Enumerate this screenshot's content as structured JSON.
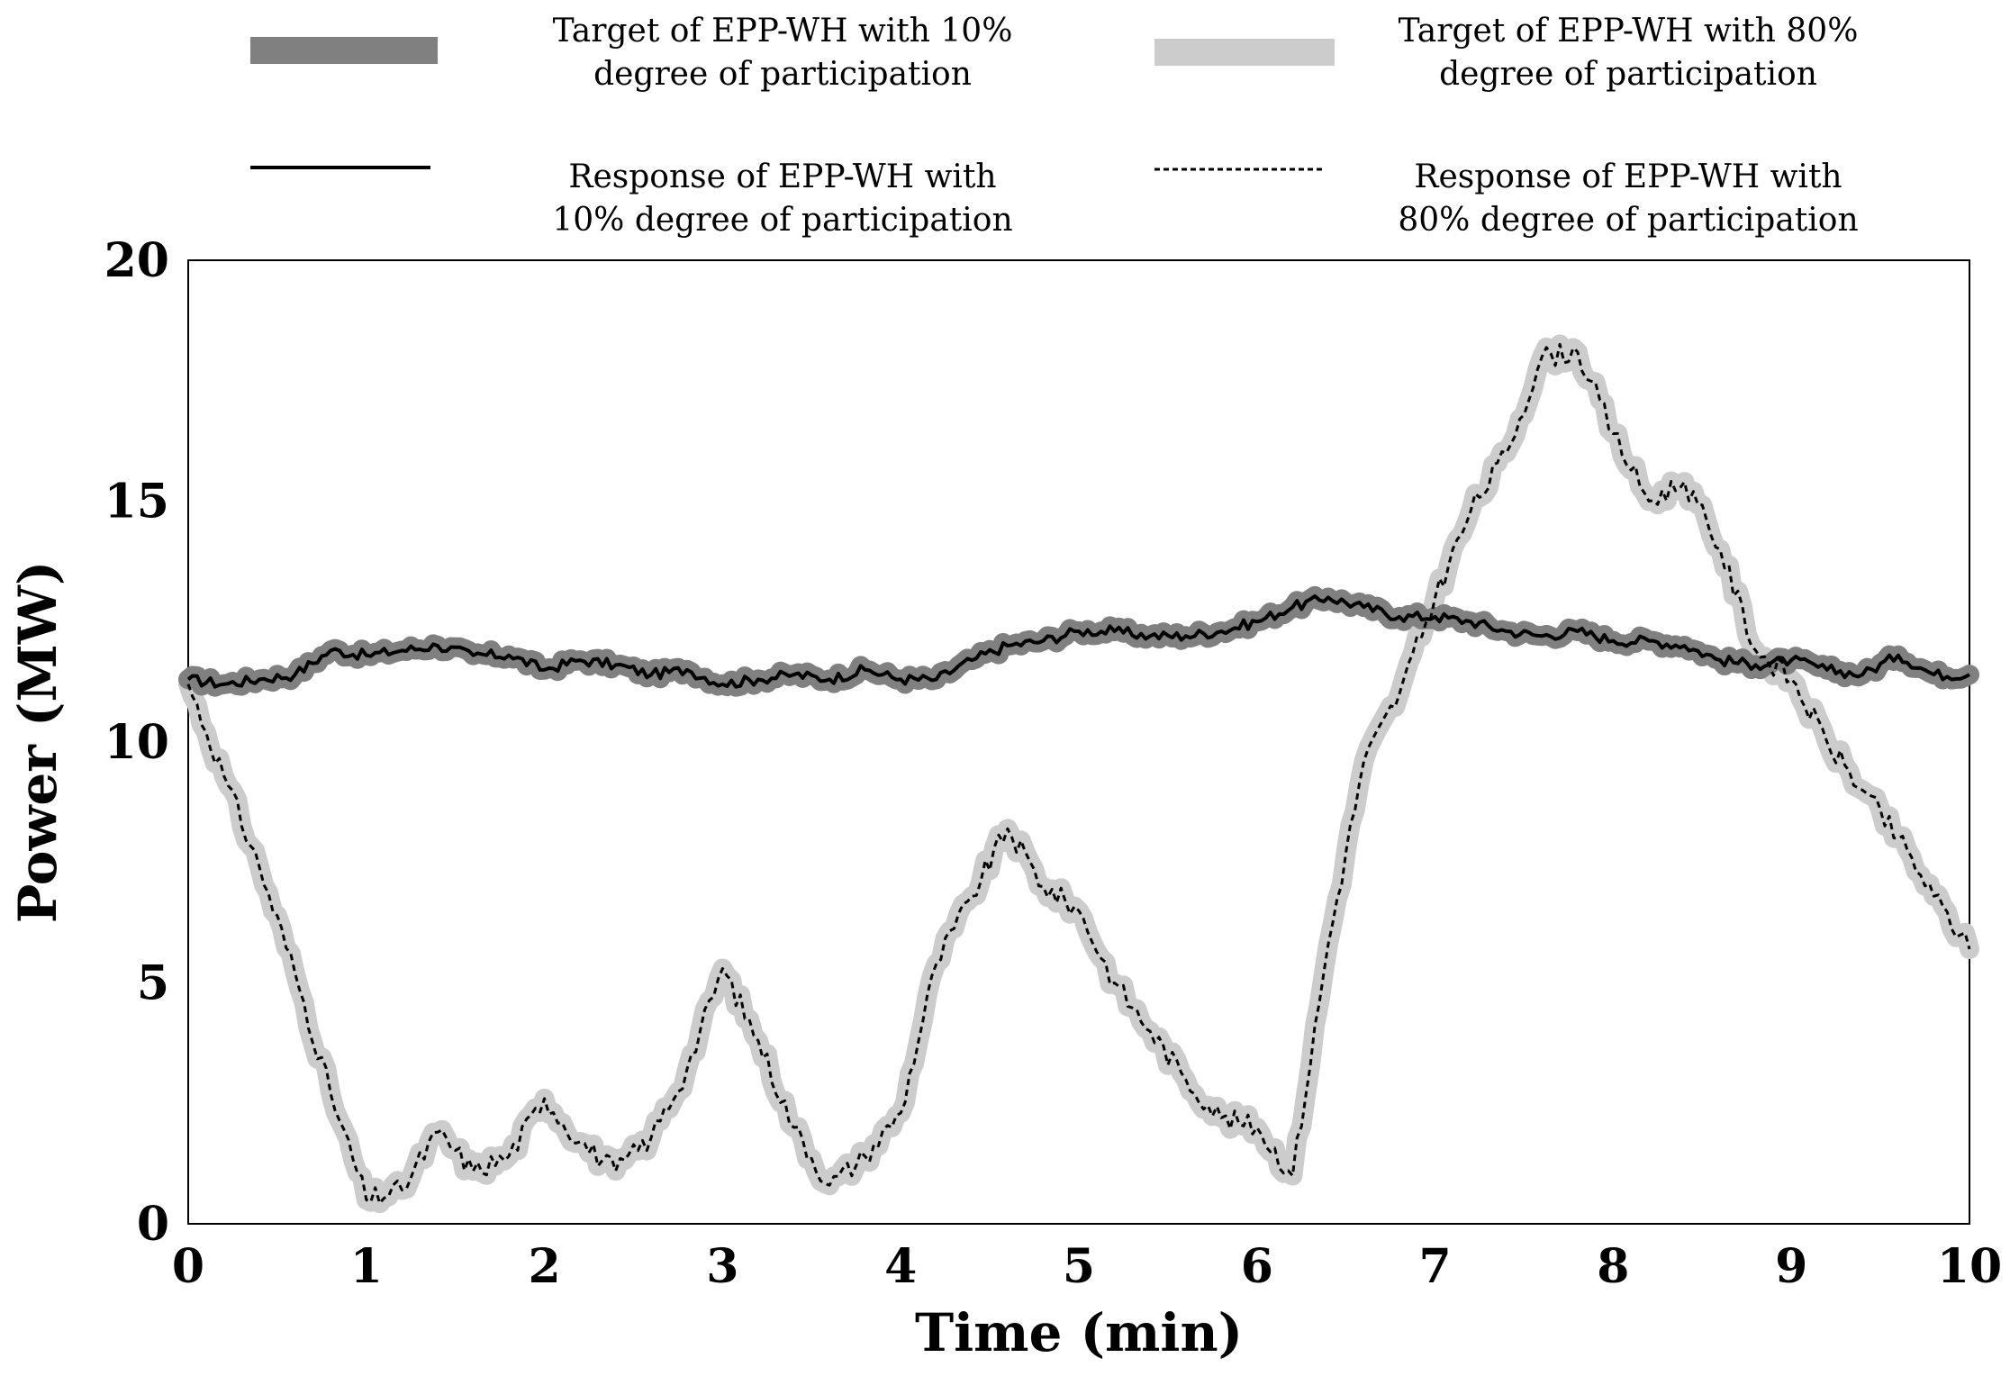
{
  "chart_data": {
    "type": "line",
    "title": "",
    "xlabel": "Time (min)",
    "ylabel": "Power (MW)",
    "xlim": [
      0,
      10
    ],
    "ylim": [
      0,
      20
    ],
    "xticks": [
      0,
      1,
      2,
      3,
      4,
      5,
      6,
      7,
      8,
      9,
      10
    ],
    "yticks": [
      0,
      5,
      10,
      15,
      20
    ],
    "grid": false,
    "legend_position": "top",
    "colors": {
      "target10": "#808080",
      "target80": "#cccccc",
      "response10": "#000000",
      "response80": "#000000"
    },
    "x": [
      0,
      0.2,
      0.4,
      0.6,
      0.8,
      1,
      1.2,
      1.4,
      1.6,
      1.8,
      2,
      2.2,
      2.4,
      2.6,
      2.8,
      3,
      3.2,
      3.4,
      3.6,
      3.8,
      4,
      4.2,
      4.4,
      4.6,
      4.8,
      5,
      5.2,
      5.4,
      5.6,
      5.8,
      6,
      6.2,
      6.4,
      6.6,
      6.8,
      7,
      7.2,
      7.4,
      7.6,
      7.8,
      8,
      8.2,
      8.4,
      8.6,
      8.8,
      9,
      9.2,
      9.4,
      9.6,
      9.8,
      10
    ],
    "series": [
      {
        "name": "Target of EPP-WH with 10% degree of participation",
        "style": "thick-dark-gray",
        "values": [
          11.3,
          11.2,
          11.3,
          11.4,
          11.9,
          11.8,
          11.9,
          12.0,
          11.8,
          11.8,
          11.5,
          11.7,
          11.6,
          11.4,
          11.5,
          11.2,
          11.3,
          11.4,
          11.3,
          11.5,
          11.3,
          11.3,
          11.7,
          12.0,
          12.1,
          12.3,
          12.3,
          12.2,
          12.2,
          12.3,
          12.5,
          12.8,
          13.0,
          12.8,
          12.6,
          12.6,
          12.5,
          12.3,
          12.2,
          12.3,
          12.1,
          12.1,
          12.0,
          11.7,
          11.6,
          11.7,
          11.5,
          11.4,
          11.8,
          11.4,
          11.4
        ]
      },
      {
        "name": "Target of EPP-WH with 80% degree of participation",
        "style": "thick-light-gray",
        "values": [
          11.2,
          9.3,
          7.4,
          5.2,
          2.7,
          0.5,
          0.7,
          1.9,
          1.1,
          1.4,
          2.6,
          1.7,
          1.1,
          1.8,
          3.2,
          5.3,
          3.8,
          2.0,
          0.8,
          1.4,
          2.3,
          5.4,
          6.8,
          8.2,
          7.0,
          6.5,
          5.0,
          4.0,
          3.0,
          2.2,
          2.0,
          1.0,
          5.8,
          9.6,
          11.0,
          13.0,
          14.8,
          16.0,
          18.0,
          18.1,
          16.4,
          15.0,
          15.4,
          14.0,
          11.9,
          11.3,
          10.0,
          9.0,
          8.0,
          6.8,
          5.7
        ]
      },
      {
        "name": "Response of EPP-WH with 10% degree of participation",
        "style": "solid-black",
        "values": [
          11.3,
          11.2,
          11.3,
          11.4,
          11.9,
          11.8,
          11.9,
          12.0,
          11.8,
          11.8,
          11.5,
          11.7,
          11.6,
          11.4,
          11.5,
          11.2,
          11.3,
          11.4,
          11.3,
          11.5,
          11.3,
          11.3,
          11.7,
          12.0,
          12.1,
          12.3,
          12.3,
          12.2,
          12.2,
          12.3,
          12.5,
          12.8,
          13.0,
          12.8,
          12.6,
          12.6,
          12.5,
          12.3,
          12.2,
          12.3,
          12.1,
          12.1,
          12.0,
          11.7,
          11.6,
          11.7,
          11.5,
          11.4,
          11.8,
          11.4,
          11.4
        ]
      },
      {
        "name": "Response of EPP-WH with 80% degree of participation",
        "style": "dashed-black",
        "values": [
          11.2,
          9.3,
          7.4,
          5.2,
          2.7,
          0.5,
          0.7,
          1.9,
          1.1,
          1.4,
          2.6,
          1.7,
          1.1,
          1.8,
          3.2,
          5.3,
          3.8,
          2.0,
          0.8,
          1.4,
          2.3,
          5.4,
          6.8,
          8.2,
          7.0,
          6.5,
          5.0,
          4.0,
          3.0,
          2.2,
          2.0,
          1.0,
          5.8,
          9.6,
          11.0,
          13.0,
          14.8,
          16.0,
          18.0,
          18.1,
          16.4,
          15.0,
          15.4,
          14.0,
          11.9,
          11.3,
          10.0,
          9.0,
          8.0,
          6.8,
          5.7
        ]
      }
    ],
    "legend": [
      {
        "line1": "Target of EPP-WH with 10%",
        "line2": "degree of participation"
      },
      {
        "line1": "Target of EPP-WH with 80%",
        "line2": "degree of participation"
      },
      {
        "line1": "Response of EPP-WH with",
        "line2": "10% degree of participation"
      },
      {
        "line1": "Response of EPP-WH with",
        "line2": "80% degree of participation"
      }
    ]
  }
}
